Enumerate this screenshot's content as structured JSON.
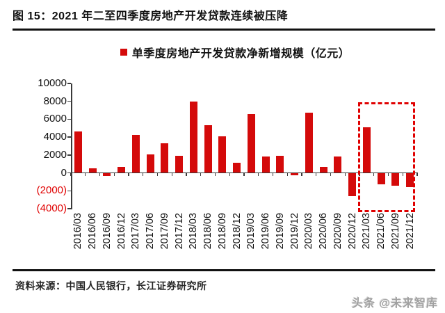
{
  "figure": {
    "title": "图 15：2021 年二至四季度房地产开发贷款连续被压降",
    "source": "资料来源：中国人民银行，长江证券研究所",
    "watermark": "头条 @未来智库"
  },
  "colors": {
    "bar_red": "#d40a0a",
    "highlight_red": "#e00000",
    "negative_tick_red": "#e00000",
    "axis_gray": "#3a3a3a",
    "text_black": "#111111"
  },
  "chart_data": {
    "type": "bar",
    "title": "",
    "legend": "单季度房地产开发贷款净新增规模（亿元）",
    "xlabel": "",
    "ylabel": "",
    "categories": [
      "2016/03",
      "2016/06",
      "2016/09",
      "2016/12",
      "2017/03",
      "2017/06",
      "2017/09",
      "2017/12",
      "2018/03",
      "2018/06",
      "2018/09",
      "2018/12",
      "2019/03",
      "2019/06",
      "2019/09",
      "2019/12",
      "2020/03",
      "2020/06",
      "2020/09",
      "2020/12",
      "2021/03",
      "2021/06",
      "2021/09",
      "2021/12"
    ],
    "values": [
      4600,
      500,
      -350,
      650,
      4250,
      2050,
      3350,
      1950,
      8000,
      5350,
      4100,
      1150,
      6550,
      1800,
      1950,
      -250,
      6700,
      700,
      1800,
      -2600,
      5100,
      -1300,
      -1400,
      -1600
    ],
    "ylim": [
      -4000,
      10000
    ],
    "ytick_step": 2000,
    "grid": false,
    "legend_position": "top",
    "negative_ylabel_format": "parentheses-red",
    "highlight_box": {
      "categories": [
        "2021/03",
        "2021/06",
        "2021/09",
        "2021/12"
      ],
      "top_value": 7900,
      "bottom_value": -4350,
      "note": "红色虚线框标注 2021 年各季度"
    }
  }
}
